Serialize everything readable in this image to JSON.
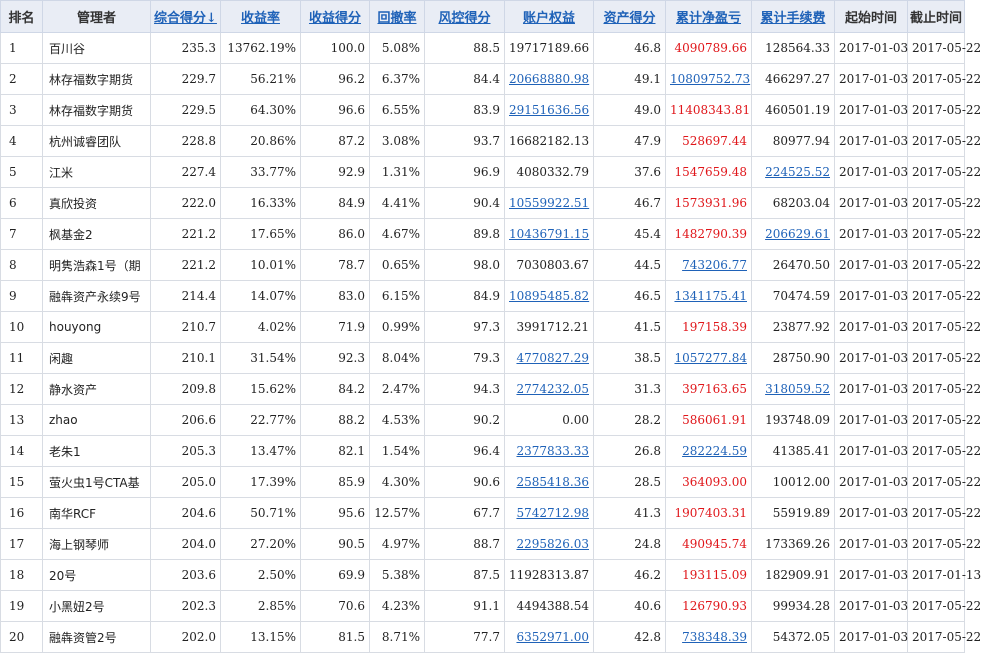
{
  "table": {
    "headers": [
      "排名",
      "管理者",
      "综合得分↓",
      "收益率",
      "收益得分",
      "回撤率",
      "风控得分",
      "账户权益",
      "资产得分",
      "累计净盈亏",
      "累计手续费",
      "起始时间",
      "截止时间"
    ],
    "rows": [
      {
        "rank": "1",
        "name": "百川谷",
        "score": "235.3",
        "ret": "13762.19%",
        "ret_score": "100.0",
        "dd": "5.08%",
        "risk": "88.5",
        "equity": "19717189.66",
        "equity_link": false,
        "asset": "46.8",
        "pnl": "4090789.66",
        "pnl_red": true,
        "pnl_link": false,
        "fee": "128564.33",
        "fee_link": false,
        "start": "2017-01-03",
        "end": "2017-05-22"
      },
      {
        "rank": "2",
        "name": "林存福数字期货",
        "score": "229.7",
        "ret": "56.21%",
        "ret_score": "96.2",
        "dd": "6.37%",
        "risk": "84.4",
        "equity": "20668880.98",
        "equity_link": true,
        "asset": "49.1",
        "pnl": "10809752.73",
        "pnl_red": false,
        "pnl_link": true,
        "fee": "466297.27",
        "fee_link": false,
        "start": "2017-01-03",
        "end": "2017-05-22"
      },
      {
        "rank": "3",
        "name": "林存福数字期货",
        "score": "229.5",
        "ret": "64.30%",
        "ret_score": "96.6",
        "dd": "6.55%",
        "risk": "83.9",
        "equity": "29151636.56",
        "equity_link": true,
        "asset": "49.0",
        "pnl": "11408343.81",
        "pnl_red": true,
        "pnl_link": false,
        "fee": "460501.19",
        "fee_link": false,
        "start": "2017-01-03",
        "end": "2017-05-22"
      },
      {
        "rank": "4",
        "name": "杭州诚睿团队",
        "score": "228.8",
        "ret": "20.86%",
        "ret_score": "87.2",
        "dd": "3.08%",
        "risk": "93.7",
        "equity": "16682182.13",
        "equity_link": false,
        "asset": "47.9",
        "pnl": "528697.44",
        "pnl_red": true,
        "pnl_link": false,
        "fee": "80977.94",
        "fee_link": false,
        "start": "2017-01-03",
        "end": "2017-05-22"
      },
      {
        "rank": "5",
        "name": "江米",
        "score": "227.4",
        "ret": "33.77%",
        "ret_score": "92.9",
        "dd": "1.31%",
        "risk": "96.9",
        "equity": "4080332.79",
        "equity_link": false,
        "asset": "37.6",
        "pnl": "1547659.48",
        "pnl_red": true,
        "pnl_link": false,
        "fee": "224525.52",
        "fee_link": true,
        "start": "2017-01-03",
        "end": "2017-05-22"
      },
      {
        "rank": "6",
        "name": "真欣投资",
        "score": "222.0",
        "ret": "16.33%",
        "ret_score": "84.9",
        "dd": "4.41%",
        "risk": "90.4",
        "equity": "10559922.51",
        "equity_link": true,
        "asset": "46.7",
        "pnl": "1573931.96",
        "pnl_red": true,
        "pnl_link": false,
        "fee": "68203.04",
        "fee_link": false,
        "start": "2017-01-03",
        "end": "2017-05-22"
      },
      {
        "rank": "7",
        "name": "枫基金2",
        "score": "221.2",
        "ret": "17.65%",
        "ret_score": "86.0",
        "dd": "4.67%",
        "risk": "89.8",
        "equity": "10436791.15",
        "equity_link": true,
        "asset": "45.4",
        "pnl": "1482790.39",
        "pnl_red": true,
        "pnl_link": false,
        "fee": "206629.61",
        "fee_link": true,
        "start": "2017-01-03",
        "end": "2017-05-22"
      },
      {
        "rank": "8",
        "name": "明隽浩森1号（期",
        "score": "221.2",
        "ret": "10.01%",
        "ret_score": "78.7",
        "dd": "0.65%",
        "risk": "98.0",
        "equity": "7030803.67",
        "equity_link": false,
        "asset": "44.5",
        "pnl": "743206.77",
        "pnl_red": false,
        "pnl_link": true,
        "fee": "26470.50",
        "fee_link": false,
        "start": "2017-01-03",
        "end": "2017-05-22"
      },
      {
        "rank": "9",
        "name": "融犇资产永续9号",
        "score": "214.4",
        "ret": "14.07%",
        "ret_score": "83.0",
        "dd": "6.15%",
        "risk": "84.9",
        "equity": "10895485.82",
        "equity_link": true,
        "asset": "46.5",
        "pnl": "1341175.41",
        "pnl_red": false,
        "pnl_link": true,
        "fee": "70474.59",
        "fee_link": false,
        "start": "2017-01-03",
        "end": "2017-05-22"
      },
      {
        "rank": "10",
        "name": "houyong",
        "score": "210.7",
        "ret": "4.02%",
        "ret_score": "71.9",
        "dd": "0.99%",
        "risk": "97.3",
        "equity": "3991712.21",
        "equity_link": false,
        "asset": "41.5",
        "pnl": "197158.39",
        "pnl_red": true,
        "pnl_link": false,
        "fee": "23877.92",
        "fee_link": false,
        "start": "2017-01-03",
        "end": "2017-05-22"
      },
      {
        "rank": "11",
        "name": "闲趣",
        "score": "210.1",
        "ret": "31.54%",
        "ret_score": "92.3",
        "dd": "8.04%",
        "risk": "79.3",
        "equity": "4770827.29",
        "equity_link": true,
        "asset": "38.5",
        "pnl": "1057277.84",
        "pnl_red": false,
        "pnl_link": true,
        "fee": "28750.90",
        "fee_link": false,
        "start": "2017-01-03",
        "end": "2017-05-22"
      },
      {
        "rank": "12",
        "name": "静水资产",
        "score": "209.8",
        "ret": "15.62%",
        "ret_score": "84.2",
        "dd": "2.47%",
        "risk": "94.3",
        "equity": "2774232.05",
        "equity_link": true,
        "asset": "31.3",
        "pnl": "397163.65",
        "pnl_red": true,
        "pnl_link": false,
        "fee": "318059.52",
        "fee_link": true,
        "start": "2017-01-03",
        "end": "2017-05-22"
      },
      {
        "rank": "13",
        "name": "zhao",
        "score": "206.6",
        "ret": "22.77%",
        "ret_score": "88.2",
        "dd": "4.53%",
        "risk": "90.2",
        "equity": "0.00",
        "equity_link": false,
        "asset": "28.2",
        "pnl": "586061.91",
        "pnl_red": true,
        "pnl_link": false,
        "fee": "193748.09",
        "fee_link": false,
        "start": "2017-01-03",
        "end": "2017-05-22"
      },
      {
        "rank": "14",
        "name": "老朱1",
        "score": "205.3",
        "ret": "13.47%",
        "ret_score": "82.1",
        "dd": "1.54%",
        "risk": "96.4",
        "equity": "2377833.33",
        "equity_link": true,
        "asset": "26.8",
        "pnl": "282224.59",
        "pnl_red": false,
        "pnl_link": true,
        "fee": "41385.41",
        "fee_link": false,
        "start": "2017-01-03",
        "end": "2017-05-22"
      },
      {
        "rank": "15",
        "name": "萤火虫1号CTA基",
        "score": "205.0",
        "ret": "17.39%",
        "ret_score": "85.9",
        "dd": "4.30%",
        "risk": "90.6",
        "equity": "2585418.36",
        "equity_link": true,
        "asset": "28.5",
        "pnl": "364093.00",
        "pnl_red": true,
        "pnl_link": false,
        "fee": "10012.00",
        "fee_link": false,
        "start": "2017-01-03",
        "end": "2017-05-22"
      },
      {
        "rank": "16",
        "name": "南华RCF",
        "score": "204.6",
        "ret": "50.71%",
        "ret_score": "95.6",
        "dd": "12.57%",
        "risk": "67.7",
        "equity": "5742712.98",
        "equity_link": true,
        "asset": "41.3",
        "pnl": "1907403.31",
        "pnl_red": true,
        "pnl_link": false,
        "fee": "55919.89",
        "fee_link": false,
        "start": "2017-01-03",
        "end": "2017-05-22"
      },
      {
        "rank": "17",
        "name": "海上钢琴师",
        "score": "204.0",
        "ret": "27.20%",
        "ret_score": "90.5",
        "dd": "4.97%",
        "risk": "88.7",
        "equity": "2295826.03",
        "equity_link": true,
        "asset": "24.8",
        "pnl": "490945.74",
        "pnl_red": true,
        "pnl_link": false,
        "fee": "173369.26",
        "fee_link": false,
        "start": "2017-01-03",
        "end": "2017-05-22"
      },
      {
        "rank": "18",
        "name": "20号",
        "score": "203.6",
        "ret": "2.50%",
        "ret_score": "69.9",
        "dd": "5.38%",
        "risk": "87.5",
        "equity": "11928313.87",
        "equity_link": false,
        "asset": "46.2",
        "pnl": "193115.09",
        "pnl_red": true,
        "pnl_link": false,
        "fee": "182909.91",
        "fee_link": false,
        "start": "2017-01-03",
        "end": "2017-01-13"
      },
      {
        "rank": "19",
        "name": "小黑妞2号",
        "score": "202.3",
        "ret": "2.85%",
        "ret_score": "70.6",
        "dd": "4.23%",
        "risk": "91.1",
        "equity": "4494388.54",
        "equity_link": false,
        "asset": "40.6",
        "pnl": "126790.93",
        "pnl_red": true,
        "pnl_link": false,
        "fee": "99934.28",
        "fee_link": false,
        "start": "2017-01-03",
        "end": "2017-05-22"
      },
      {
        "rank": "20",
        "name": "融犇资管2号",
        "score": "202.0",
        "ret": "13.15%",
        "ret_score": "81.5",
        "dd": "8.71%",
        "risk": "77.7",
        "equity": "6352971.00",
        "equity_link": true,
        "asset": "42.8",
        "pnl": "738348.39",
        "pnl_red": false,
        "pnl_link": true,
        "fee": "54372.05",
        "fee_link": false,
        "start": "2017-01-03",
        "end": "2017-05-22"
      }
    ]
  }
}
